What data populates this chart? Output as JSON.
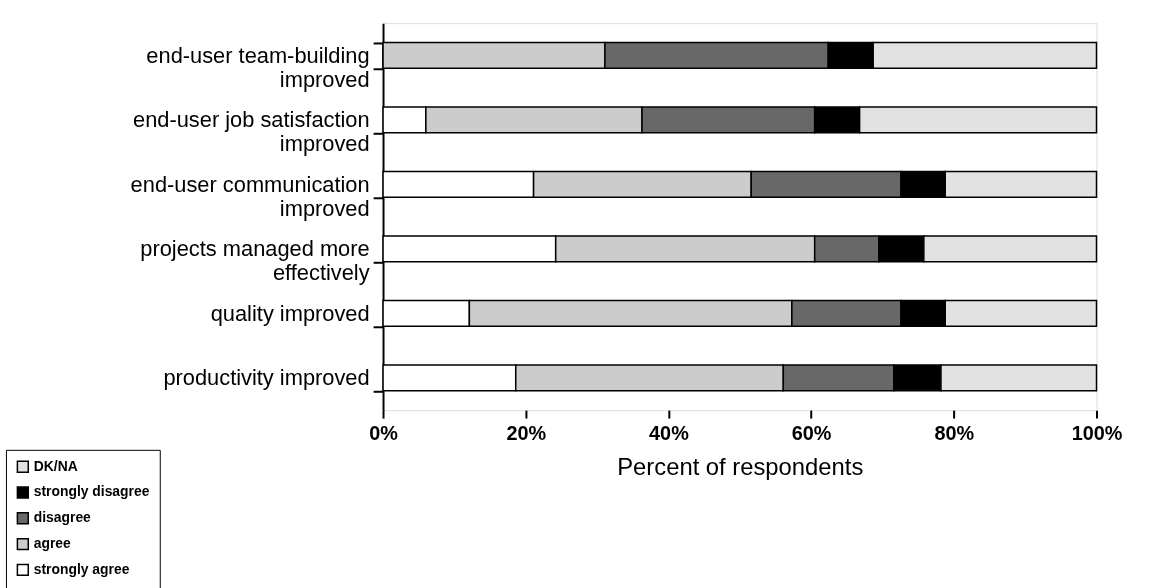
{
  "chart_data": {
    "type": "bar",
    "orientation": "horizontal",
    "stacked": true,
    "xlabel": "Percent of respondents",
    "categories": [
      "end-user team-building improved",
      "end-user job satisfaction improved",
      "end-user communication improved",
      "projects managed more effectively",
      "quality improved",
      "productivity improved"
    ],
    "series": [
      {
        "name": "strongly agree",
        "color": "#ffffff",
        "values": [
          0,
          6.0,
          21.1,
          24.2,
          12.1,
          18.6
        ]
      },
      {
        "name": "agree",
        "color": "#cccccc",
        "values": [
          31.1,
          30.3,
          30.5,
          36.3,
          45.2,
          37.5
        ]
      },
      {
        "name": "disagree",
        "color": "#686868",
        "values": [
          31.3,
          24.2,
          21.0,
          9.0,
          15.3,
          15.5
        ]
      },
      {
        "name": "strongly disagree",
        "color": "#000000",
        "values": [
          6.3,
          6.3,
          6.2,
          6.3,
          6.2,
          6.6
        ]
      },
      {
        "name": "DK/NA",
        "color": "#e2e2e2",
        "values": [
          31.3,
          33.2,
          21.2,
          24.2,
          21.2,
          21.8
        ]
      }
    ],
    "xlim": [
      0,
      100
    ],
    "xticks": [
      {
        "value": 0,
        "label": "0%"
      },
      {
        "value": 20,
        "label": "20%"
      },
      {
        "value": 40,
        "label": "40%"
      },
      {
        "value": 60,
        "label": "60%"
      },
      {
        "value": 80,
        "label": "80%"
      },
      {
        "value": 100,
        "label": "100%"
      }
    ],
    "grid": false,
    "legend": "bottom left"
  }
}
